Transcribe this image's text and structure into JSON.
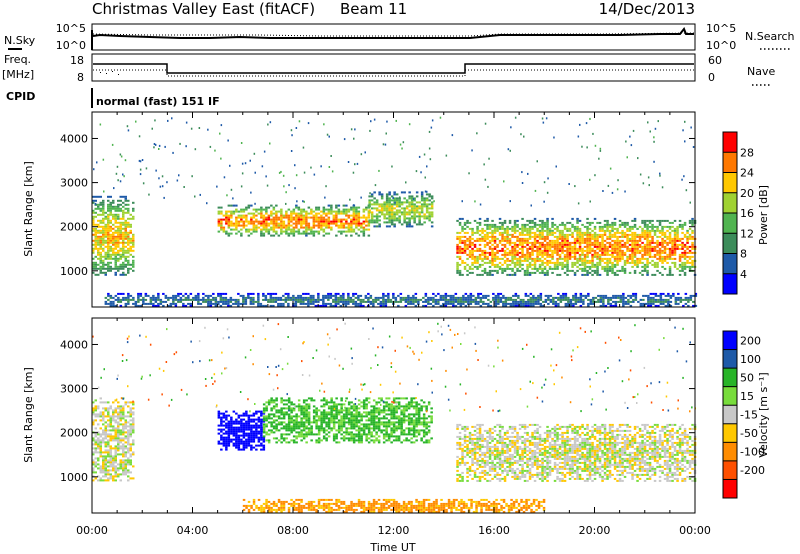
{
  "header": {
    "title": "Christmas Valley East (fitACF)",
    "beam": "Beam 11",
    "date": "14/Dec/2013"
  },
  "noise_panel": {
    "left_label": "N.Sky",
    "right_label": "N.Search",
    "left_ticks": [
      "10^5",
      "10^0"
    ],
    "right_ticks": [
      "10^5",
      "10^0"
    ]
  },
  "freq_panel": {
    "left_label_line1": "Freq.",
    "left_label_line2": "[MHz]",
    "right_label": "Nave",
    "left_ticks": [
      "18",
      "8"
    ],
    "right_ticks": [
      "60",
      "0"
    ]
  },
  "cpid": {
    "label": "CPID",
    "text": "normal (fast) 151 IF"
  },
  "colors": {
    "power": [
      "#0000ff",
      "#1e5aa8",
      "#3c8c5a",
      "#50b450",
      "#a0d232",
      "#ffc800",
      "#ff7800",
      "#ff0000"
    ],
    "velocity": [
      "#0000ff",
      "#1e5aa8",
      "#28b428",
      "#78dc3c",
      "#c8c8c8",
      "#ffc800",
      "#ff8c00",
      "#ff5000",
      "#ff0000"
    ]
  },
  "chart_data": [
    {
      "type": "heatmap",
      "title": "",
      "xlabel": "Time UT",
      "ylabel": "Slant Range [km]",
      "x_ticks": [
        "00:00",
        "04:00",
        "08:00",
        "12:00",
        "16:00",
        "20:00",
        "00:00"
      ],
      "y_ticks": [
        1000,
        2000,
        3000,
        4000
      ],
      "xlim": [
        0,
        24
      ],
      "ylim": [
        180,
        4600
      ],
      "colorbar": {
        "label": "Power [dB]",
        "ticks": [
          4,
          8,
          12,
          16,
          20,
          24,
          28
        ],
        "range": [
          0,
          32
        ]
      },
      "echo_regions": [
        {
          "t": [
            0.0,
            1.6
          ],
          "range": [
            900,
            2700
          ],
          "peak_db": 26
        },
        {
          "t": [
            5.0,
            11.0
          ],
          "range": [
            1800,
            2500
          ],
          "peak_db": 30
        },
        {
          "t": [
            11.0,
            13.5
          ],
          "range": [
            2000,
            2800
          ],
          "peak_db": 22
        },
        {
          "t": [
            14.5,
            24.0
          ],
          "range": [
            900,
            2200
          ],
          "peak_db": 30
        },
        {
          "t": [
            0.5,
            24.0
          ],
          "range": [
            200,
            500
          ],
          "peak_db": 10
        }
      ]
    },
    {
      "type": "heatmap",
      "title": "",
      "xlabel": "Time UT",
      "ylabel": "Slant Range [km]",
      "x_ticks": [
        "00:00",
        "04:00",
        "08:00",
        "12:00",
        "16:00",
        "20:00",
        "00:00"
      ],
      "y_ticks": [
        1000,
        2000,
        3000,
        4000
      ],
      "xlim": [
        0,
        24
      ],
      "ylim": [
        180,
        4600
      ],
      "colorbar": {
        "label": "Velocity [m s⁻¹]",
        "ticks": [
          200,
          100,
          50,
          15,
          -15,
          -50,
          -100,
          -200
        ]
      },
      "echo_regions": [
        {
          "t": [
            0.0,
            1.6
          ],
          "range": [
            900,
            2800
          ],
          "velocity_ms": 0
        },
        {
          "t": [
            5.0,
            6.8
          ],
          "range": [
            1600,
            2500
          ],
          "velocity_ms": 250
        },
        {
          "t": [
            6.8,
            13.5
          ],
          "range": [
            1800,
            2800
          ],
          "velocity_ms": 60
        },
        {
          "t": [
            14.5,
            24.0
          ],
          "range": [
            900,
            2200
          ],
          "velocity_ms": 0
        },
        {
          "t": [
            6.0,
            18.0
          ],
          "range": [
            200,
            500
          ],
          "velocity_ms": -60
        }
      ]
    }
  ]
}
